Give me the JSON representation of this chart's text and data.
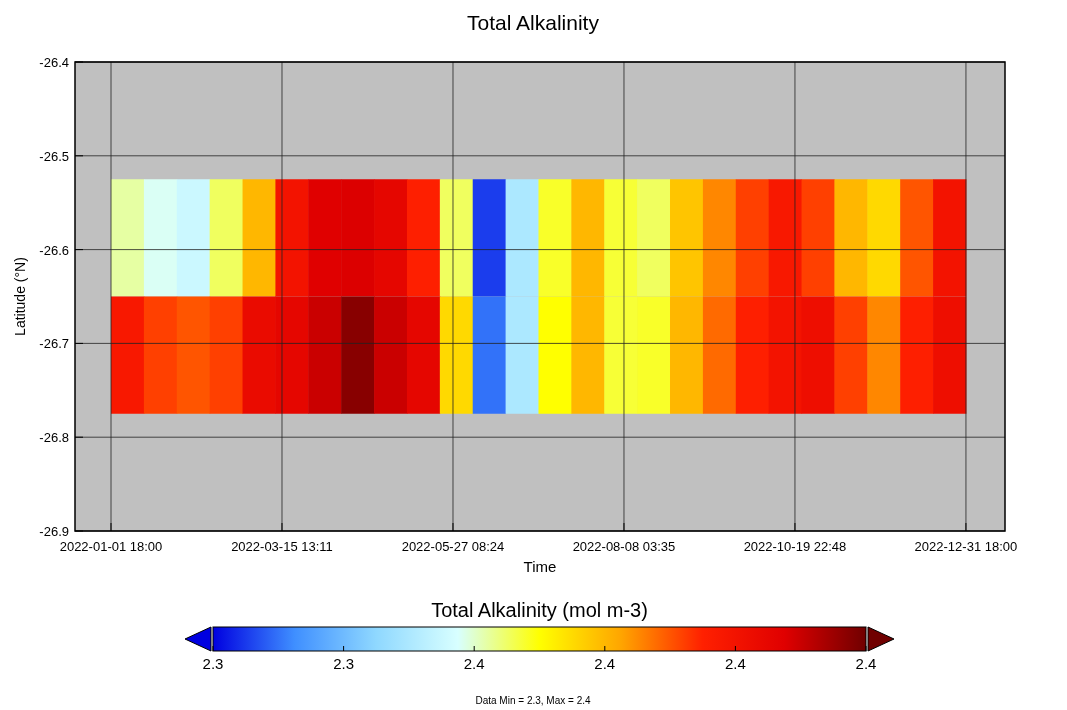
{
  "chart_data": {
    "type": "heatmap",
    "title": "Total Alkalinity",
    "xlabel": "Time",
    "ylabel": "Latitude (°N)",
    "clabel": "Total Alkalinity (mol m-3)",
    "annotations": [
      "Data Min = 2.3, Max = 2.4"
    ],
    "x": [
      "2022-01-08T18:00",
      "2022-01-22T18:00",
      "2022-02-05T18:00",
      "2022-02-19T18:00",
      "2022-03-05T18:00",
      "2022-03-19T18:00",
      "2022-04-02T18:00",
      "2022-04-16T18:00",
      "2022-04-30T18:00",
      "2022-05-14T18:00",
      "2022-05-28T18:00",
      "2022-06-11T18:00",
      "2022-06-25T18:00",
      "2022-07-09T18:00",
      "2022-07-23T18:00",
      "2022-08-06T18:00",
      "2022-08-20T18:00",
      "2022-09-03T18:00",
      "2022-09-17T18:00",
      "2022-10-01T18:00",
      "2022-10-15T18:00",
      "2022-10-29T18:00",
      "2022-11-12T18:00",
      "2022-11-26T18:00",
      "2022-12-10T18:00",
      "2022-12-24T18:00"
    ],
    "y": [
      -26.5875,
      -26.7125
    ],
    "cells": [
      [
        2.353,
        2.347,
        2.343,
        2.358,
        2.38,
        2.41,
        2.421,
        2.422,
        2.418,
        2.403,
        2.358,
        2.298,
        2.335,
        2.362,
        2.38,
        2.361,
        2.358,
        2.377,
        2.388,
        2.398,
        2.407,
        2.398,
        2.38,
        2.373,
        2.395,
        2.41
      ],
      [
        2.407,
        2.398,
        2.395,
        2.398,
        2.415,
        2.418,
        2.425,
        2.436,
        2.425,
        2.418,
        2.373,
        2.305,
        2.335,
        2.365,
        2.38,
        2.361,
        2.362,
        2.38,
        2.392,
        2.403,
        2.41,
        2.413,
        2.398,
        2.388,
        2.403,
        2.413
      ]
    ],
    "clim": [
      2.29,
      2.44
    ],
    "cticks": [
      {
        "value": 2.29,
        "label": "2.3"
      },
      {
        "value": 2.32,
        "label": "2.3"
      },
      {
        "value": 2.35,
        "label": "2.4"
      },
      {
        "value": 2.38,
        "label": "2.4"
      },
      {
        "value": 2.41,
        "label": "2.4"
      },
      {
        "value": 2.44,
        "label": "2.4"
      }
    ],
    "xlim": [
      "2021-12-17T10:00",
      "2023-01-17T09:00"
    ],
    "xticks": [
      {
        "value": "2022-01-01T18:00",
        "label": "2022-01-01 18:00"
      },
      {
        "value": "2022-03-15T13:11",
        "label": "2022-03-15 13:11"
      },
      {
        "value": "2022-05-27T08:24",
        "label": "2022-05-27 08:24"
      },
      {
        "value": "2022-08-08T03:35",
        "label": "2022-08-08 03:35"
      },
      {
        "value": "2022-10-19T22:48",
        "label": "2022-10-19 22:48"
      },
      {
        "value": "2022-12-31T18:00",
        "label": "2022-12-31 18:00"
      }
    ],
    "ylim": [
      -26.9,
      -26.4
    ],
    "yticks": [
      -26.9,
      -26.8,
      -26.7,
      -26.6,
      -26.5,
      -26.4
    ],
    "grid": true
  }
}
